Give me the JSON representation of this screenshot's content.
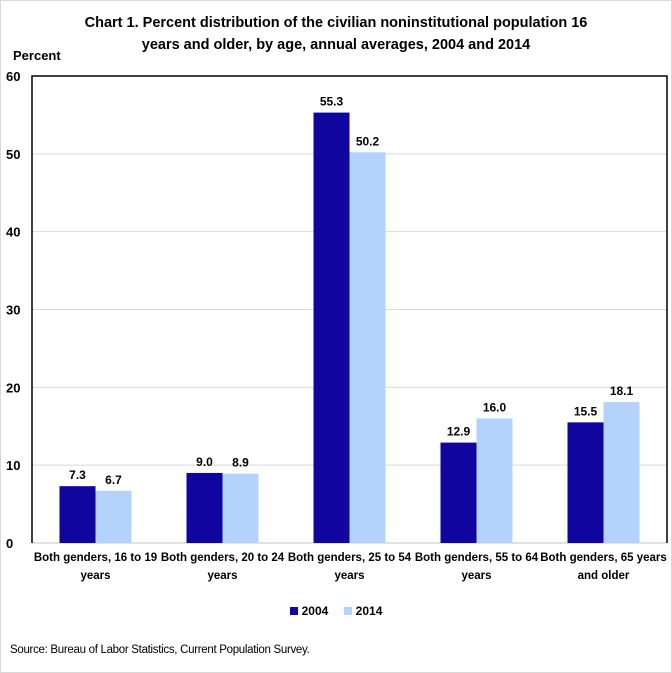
{
  "chart_data": {
    "type": "bar",
    "title": "Chart 1.  Percent distribution of the civilian noninstitutional population 16 years and older, by age, annual averages, 2004 and 2014",
    "title_lines": [
      "Chart 1.  Percent distribution of the civilian noninstitutional population 16",
      "years and older, by age, annual averages, 2004 and 2014"
    ],
    "xlabel": "",
    "ylabel": "Percent",
    "ylim": [
      0,
      60
    ],
    "yticks": [
      0,
      10,
      20,
      30,
      40,
      50,
      60
    ],
    "grid": true,
    "legend_position": "bottom",
    "categories": [
      [
        "Both genders, 16 to 19",
        "years"
      ],
      [
        "Both genders, 20 to 24",
        "years"
      ],
      [
        "Both genders, 25 to 54",
        "years"
      ],
      [
        "Both genders, 55 to 64",
        "years"
      ],
      [
        "Both genders, 65 years",
        "and older"
      ]
    ],
    "series": [
      {
        "name": "2004",
        "color": "#10069f",
        "values": [
          7.3,
          9.0,
          55.3,
          12.9,
          15.5
        ],
        "labels": [
          "7.3",
          "9.0",
          "55.3",
          "12.9",
          "15.5"
        ]
      },
      {
        "name": "2014",
        "color": "#b3d3fc",
        "values": [
          6.7,
          8.9,
          50.2,
          16.0,
          18.1
        ],
        "labels": [
          "6.7",
          "8.9",
          "50.2",
          "16.0",
          "18.1"
        ]
      }
    ],
    "source": "Source: Bureau of Labor Statistics, Current Population Survey."
  }
}
